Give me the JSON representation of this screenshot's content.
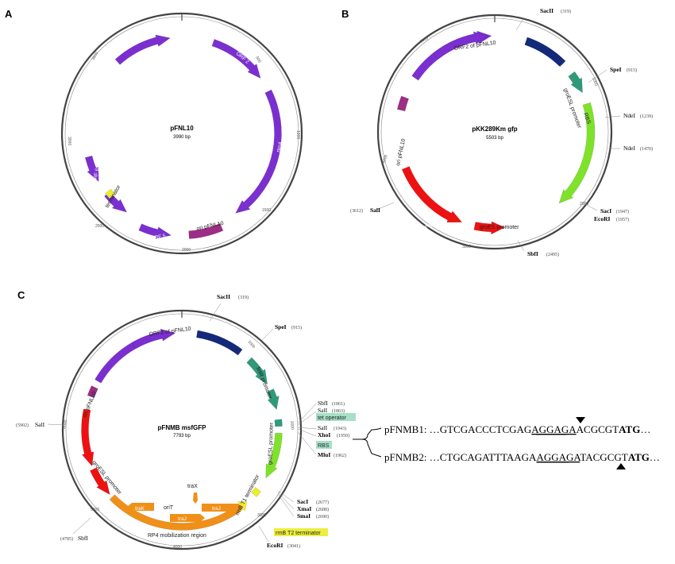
{
  "colors": {
    "purple": "#7b2fd0",
    "magenta": "#9c2e86",
    "navy": "#14297a",
    "teal": "#2e9a7a",
    "green": "#7fe22a",
    "red": "#ee1111",
    "orange": "#f09018",
    "yellow": "#ecec30",
    "teal_box": "#a6e0c6",
    "yellow_box": "#ecef40"
  },
  "panels": {
    "A": {
      "label": "A",
      "title": "pFNL10",
      "size": "3990 bp",
      "ticks": [
        "500",
        "1000",
        "1500",
        "2000",
        "2500",
        "3000",
        "3500"
      ],
      "features": [
        {
          "label": "ORF 2",
          "color": "purple"
        },
        {
          "label": "repA",
          "color": "purple"
        },
        {
          "label": "ORF 3",
          "color": "purple"
        },
        {
          "label": "ori pFNL10",
          "color": "magenta"
        },
        {
          "label": "ORF 5",
          "color": "purple"
        },
        {
          "label": "ORF 4",
          "color": "purple"
        },
        {
          "label": "ORF 6",
          "color": "purple"
        },
        {
          "label": "terminator",
          "color": "yellow"
        }
      ]
    },
    "B": {
      "label": "B",
      "title": "pKK289Km gfp",
      "size": "5503 bp",
      "ticks": [
        "1000",
        "2000",
        "3000",
        "4000",
        "5000"
      ],
      "features": [
        {
          "label": "p15A ori",
          "color": "navy"
        },
        {
          "label": "groESL promoter",
          "color": "teal"
        },
        {
          "label": "RBS",
          "color": "teal"
        },
        {
          "label": "gfp",
          "color": "green"
        },
        {
          "label": "groES promoter",
          "color": "red"
        },
        {
          "label": "neoR/kanR",
          "color": "red"
        },
        {
          "label": "ori pFNL10",
          "color": "magenta"
        },
        {
          "label": "repA",
          "color": "purple"
        },
        {
          "label": "ORF2 of pFNL10",
          "color": "purple"
        }
      ],
      "sites": [
        {
          "name": "SacII",
          "pos": "(319)"
        },
        {
          "name": "SpeI",
          "pos": "(915)"
        },
        {
          "name": "NdeI",
          "pos": "(1239)"
        },
        {
          "name": "NdeI",
          "pos": "(1470)"
        },
        {
          "name": "SacI",
          "pos": "(1947)"
        },
        {
          "name": "EcoRI",
          "pos": "(1957)"
        },
        {
          "name": "SbfI",
          "pos": "(2495)"
        },
        {
          "name": "SalI",
          "pos": "(3612)"
        }
      ]
    },
    "C": {
      "label": "C",
      "title": "pFNMB msfGFP",
      "size": "7793 bp",
      "ticks": [
        "1000",
        "2000",
        "3000",
        "4000",
        "5000",
        "6000"
      ],
      "features": [
        {
          "label": "p15A ori",
          "color": "navy"
        },
        {
          "label": "tetR",
          "color": "teal"
        },
        {
          "label": "tetR promoter",
          "color": "teal"
        },
        {
          "label": "msfgfp",
          "color": "green"
        },
        {
          "label": "groESL promoter",
          "color": "green"
        },
        {
          "label": "rrnB T1 terminator",
          "color": "yellow"
        },
        {
          "label": "traX",
          "color": "orange"
        },
        {
          "label": "traJ",
          "color": "orange"
        },
        {
          "label": "traJ",
          "color": "orange"
        },
        {
          "label": "oriT",
          "color": "orange"
        },
        {
          "label": "traK",
          "color": "orange"
        },
        {
          "label": "RP4 mobilization region",
          "color": "orange"
        },
        {
          "label": "groESL promoter",
          "color": "red"
        },
        {
          "label": "neoR/kanR",
          "color": "red"
        },
        {
          "label": "ori pFNL10",
          "color": "magenta"
        },
        {
          "label": "repA",
          "color": "purple"
        },
        {
          "label": "ORF2 of pFNL10",
          "color": "purple"
        }
      ],
      "sites": [
        {
          "name": "SacII",
          "pos": "(319)"
        },
        {
          "name": "SpeI",
          "pos": "(915)"
        },
        {
          "name": "SbfI",
          "pos": "(1861)"
        },
        {
          "name": "SalI",
          "pos": "(1863)"
        },
        {
          "name": "SalI",
          "pos": "(1943)"
        },
        {
          "name": "XhoI",
          "pos": "(1950)"
        },
        {
          "name": "MluI",
          "pos": "(1962)"
        },
        {
          "name": "SacI",
          "pos": "(2677)"
        },
        {
          "name": "XmaI",
          "pos": "(2688)"
        },
        {
          "name": "SmaI",
          "pos": "(2690)"
        },
        {
          "name": "EcoRI",
          "pos": "(3041)"
        },
        {
          "name": "SbfI",
          "pos": "(4785)"
        },
        {
          "name": "SalI",
          "pos": "(5902)"
        }
      ],
      "boxes": {
        "tet_operator": "tet operator",
        "rbs": "RBS",
        "rrnb_t2": "rrnB T2 terminator"
      }
    }
  },
  "sequences": [
    {
      "name": "pFNMB1:",
      "prefix": " …GTCGACCCTCGAG",
      "underlined": "AGGAGA",
      "middle": "ACGCGT",
      "bold": "ATG",
      "suffix": "…"
    },
    {
      "name": "pFNMB2:",
      "prefix": " …CTGCAGATTTAAGA",
      "underlined": "AGGAGA",
      "middle": "TACGCGT",
      "bold": "ATG",
      "suffix": "…"
    }
  ]
}
